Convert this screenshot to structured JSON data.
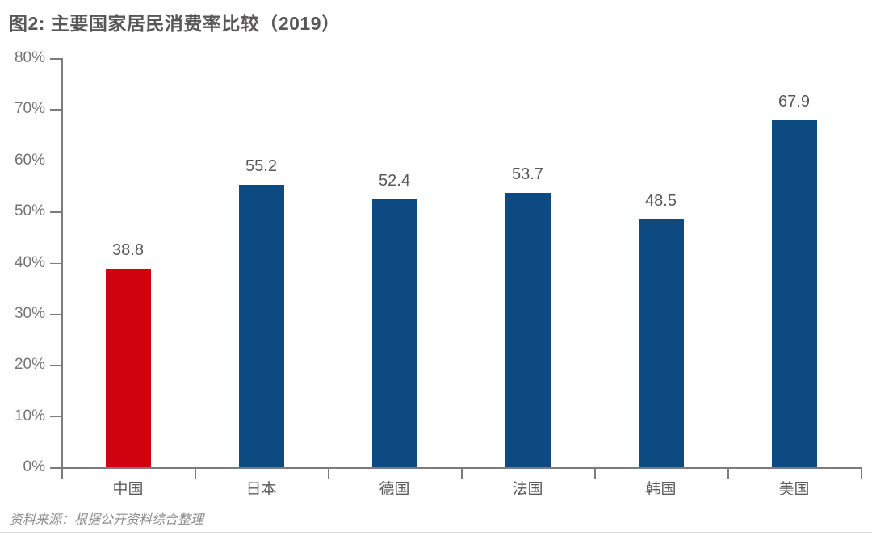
{
  "page": {
    "title": "图2: 主要国家居民消费率比较（2019）",
    "source_note": "资料来源：根据公开资料综合整理"
  },
  "chart_data": {
    "type": "bar",
    "title": "图2: 主要国家居民消费率比较（2019）",
    "categories": [
      "中国",
      "日本",
      "德国",
      "法国",
      "韩国",
      "美国"
    ],
    "values": [
      38.8,
      55.2,
      52.4,
      53.7,
      48.5,
      67.9
    ],
    "value_labels": [
      "38.8",
      "55.2",
      "52.4",
      "53.7",
      "48.5",
      "67.9"
    ],
    "unit": "%",
    "xlabel": "",
    "ylabel": "",
    "ylim": [
      0,
      80
    ],
    "ytick_step": 10,
    "ytick_labels": [
      "0%",
      "10%",
      "20%",
      "30%",
      "40%",
      "50%",
      "60%",
      "70%",
      "80%"
    ],
    "grid": false,
    "legend": false,
    "value_labels_shown": true,
    "highlighted_category": "中国",
    "colors": {
      "highlight": "#d0020f",
      "default": "#0c4a81",
      "axis": "#7d7b7b"
    },
    "bar_colors": [
      "#d0020f",
      "#0c4a81",
      "#0c4a81",
      "#0c4a81",
      "#0c4a81",
      "#0c4a81"
    ],
    "source": "资料来源：根据公开资料综合整理"
  }
}
